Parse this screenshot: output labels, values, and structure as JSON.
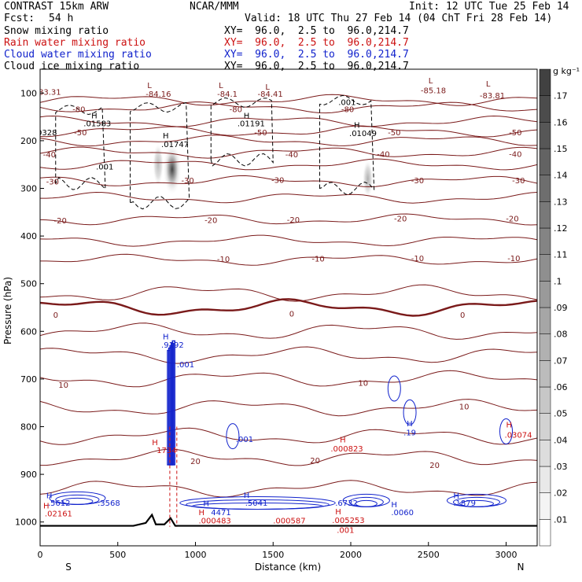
{
  "header": {
    "model": "CONTRAST 15km ARW",
    "center": "NCAR/MMM",
    "init": "Init: 12 UTC Tue 25 Feb 14",
    "fcst_label": "Fcst:",
    "fcst_value": "54 h",
    "valid": "Valid: 18 UTC Thu 27 Feb 14 (04 ChT Fri 28 Feb 14)",
    "fields": [
      {
        "name": "Snow mixing ratio",
        "xy": "XY=  96.0,  2.5 to  96.0,214.7",
        "color": "#000000"
      },
      {
        "name": "Rain water mixing ratio",
        "xy": "XY=  96.0,  2.5 to  96.0,214.7",
        "color": "#cc1111"
      },
      {
        "name": "Cloud water mixing ratio",
        "xy": "XY=  96.0,  2.5 to  96.0,214.7",
        "color": "#1122cc"
      },
      {
        "name": "Cloud ice mixing ratio",
        "xy": "XY=  96.0,  2.5 to  96.0,214.7",
        "color": "#000000"
      }
    ]
  },
  "chart_data": {
    "type": "heatmap",
    "title": "",
    "xlabel": "Distance (km)",
    "ylabel": "Pressure (hPa)",
    "xlim": [
      0,
      3200
    ],
    "ylim": [
      1050,
      50
    ],
    "x_ticks": [
      0,
      500,
      1000,
      1500,
      2000,
      2500,
      3000
    ],
    "y_ticks": [
      100,
      200,
      300,
      400,
      500,
      600,
      700,
      800,
      900,
      1000
    ],
    "x_end_labels": {
      "left": "S",
      "right": "N"
    },
    "colorbar": {
      "unit": "g kg⁻¹",
      "ticks": [
        ".01",
        ".02",
        ".03",
        ".04",
        ".05",
        ".06",
        ".07",
        ".08",
        ".09",
        ".1",
        ".11",
        ".12",
        ".13",
        ".14",
        ".15",
        ".16",
        ".17"
      ]
    },
    "isotherm_levels": [
      {
        "value": -80,
        "pressure": 130
      },
      {
        "value": -50,
        "pressure": 180
      },
      {
        "value": -40,
        "pressure": 225
      },
      {
        "value": -30,
        "pressure": 285
      },
      {
        "value": -20,
        "pressure": 365
      },
      {
        "value": -10,
        "pressure": 450
      },
      {
        "value": 0,
        "pressure": 550
      },
      {
        "value": 10,
        "pressure": 700
      },
      {
        "value": 20,
        "pressure": 865
      }
    ],
    "isotherm_extra": [
      115,
      160,
      200,
      250,
      320,
      410,
      520,
      600,
      650,
      760,
      820,
      930
    ],
    "isotherm_labels": [
      {
        "x": 80,
        "p": 285,
        "t": "-30"
      },
      {
        "x": 950,
        "p": 283,
        "t": "-30"
      },
      {
        "x": 1530,
        "p": 282,
        "t": "-30"
      },
      {
        "x": 2430,
        "p": 283,
        "t": "-30"
      },
      {
        "x": 3080,
        "p": 283,
        "t": "-30"
      },
      {
        "x": 130,
        "p": 367,
        "t": "-20"
      },
      {
        "x": 1100,
        "p": 366,
        "t": "-20"
      },
      {
        "x": 1630,
        "p": 365,
        "t": "-20"
      },
      {
        "x": 2320,
        "p": 363,
        "t": "-20"
      },
      {
        "x": 3040,
        "p": 363,
        "t": "-20"
      },
      {
        "x": 1180,
        "p": 448,
        "t": "-10"
      },
      {
        "x": 1790,
        "p": 447,
        "t": "-10"
      },
      {
        "x": 2430,
        "p": 446,
        "t": "-10"
      },
      {
        "x": 3050,
        "p": 446,
        "t": "-10"
      },
      {
        "x": 100,
        "p": 565,
        "t": "0"
      },
      {
        "x": 1620,
        "p": 562,
        "t": "0"
      },
      {
        "x": 2720,
        "p": 565,
        "t": "0"
      },
      {
        "x": 150,
        "p": 712,
        "t": "10"
      },
      {
        "x": 2080,
        "p": 708,
        "t": "10"
      },
      {
        "x": 2730,
        "p": 757,
        "t": "10"
      },
      {
        "x": 1000,
        "p": 872,
        "t": "20"
      },
      {
        "x": 1770,
        "p": 870,
        "t": "20"
      },
      {
        "x": 2540,
        "p": 880,
        "t": "20"
      },
      {
        "x": 250,
        "p": 133,
        "t": "-80"
      },
      {
        "x": 1260,
        "p": 133,
        "t": "-80"
      },
      {
        "x": 1980,
        "p": 133,
        "t": "-80"
      },
      {
        "x": 260,
        "p": 182,
        "t": "-50"
      },
      {
        "x": 1420,
        "p": 182,
        "t": "-50"
      },
      {
        "x": 2280,
        "p": 182,
        "t": "-50"
      },
      {
        "x": 3060,
        "p": 182,
        "t": "-50"
      },
      {
        "x": 60,
        "p": 228,
        "t": "-40"
      },
      {
        "x": 1620,
        "p": 228,
        "t": "-40"
      },
      {
        "x": 2210,
        "p": 227,
        "t": "-40"
      },
      {
        "x": 3060,
        "p": 227,
        "t": "-40"
      }
    ],
    "extrema": [
      {
        "x": 690,
        "p": 90,
        "t": "L",
        "color": "#7a1a1a"
      },
      {
        "x": 1150,
        "p": 90,
        "t": "L",
        "color": "#7a1a1a"
      },
      {
        "x": 1450,
        "p": 93,
        "t": "L",
        "color": "#7a1a1a"
      },
      {
        "x": 2500,
        "p": 80,
        "t": "L",
        "color": "#7a1a1a"
      },
      {
        "x": 2870,
        "p": 86,
        "t": "L",
        "color": "#7a1a1a"
      },
      {
        "x": -10,
        "p": 104,
        "t": "83.31",
        "color": "#7a1a1a"
      },
      {
        "x": 680,
        "p": 108,
        "t": "-84.16",
        "color": "#7a1a1a"
      },
      {
        "x": 1140,
        "p": 108,
        "t": "-84.1",
        "color": "#7a1a1a"
      },
      {
        "x": 1400,
        "p": 108,
        "t": "-84.41",
        "color": "#7a1a1a"
      },
      {
        "x": 2450,
        "p": 100,
        "t": "-85.18",
        "color": "#7a1a1a"
      },
      {
        "x": 2830,
        "p": 111,
        "t": "-83.81",
        "color": "#7a1a1a"
      },
      {
        "x": 330,
        "p": 153,
        "t": "H",
        "color": "#000000"
      },
      {
        "x": 280,
        "p": 170,
        "t": ".01583",
        "color": "#000000"
      },
      {
        "x": 790,
        "p": 195,
        "t": "H",
        "color": "#000000"
      },
      {
        "x": 780,
        "p": 213,
        "t": ".01747",
        "color": "#000000"
      },
      {
        "x": 1310,
        "p": 153,
        "t": "H",
        "color": "#000000"
      },
      {
        "x": 1270,
        "p": 170,
        "t": ".01191",
        "color": "#000000"
      },
      {
        "x": 2020,
        "p": 173,
        "t": "H",
        "color": "#000000"
      },
      {
        "x": 1990,
        "p": 190,
        "t": ".01049",
        "color": "#000000"
      },
      {
        "x": 1920,
        "p": 125,
        "t": ".001",
        "color": "#000000"
      },
      {
        "x": 360,
        "p": 260,
        "t": ".001",
        "color": "#000000"
      },
      {
        "x": -20,
        "p": 189,
        "t": "0328",
        "color": "#000000"
      },
      {
        "x": 790,
        "p": 617,
        "t": "H",
        "color": "#1122cc"
      },
      {
        "x": 780,
        "p": 634,
        "t": ".9192",
        "color": "#1122cc"
      },
      {
        "x": 880,
        "p": 675,
        "t": ".001",
        "color": "#1122cc"
      },
      {
        "x": 1260,
        "p": 832,
        "t": ".001",
        "color": "#1122cc"
      },
      {
        "x": 2360,
        "p": 799,
        "t": "H",
        "color": "#1122cc"
      },
      {
        "x": 2340,
        "p": 818,
        "t": ".19",
        "color": "#1122cc"
      },
      {
        "x": 40,
        "p": 950,
        "t": "H",
        "color": "#1122cc"
      },
      {
        "x": 50,
        "p": 966,
        "t": ".5612",
        "color": "#1122cc"
      },
      {
        "x": 370,
        "p": 966,
        "t": ".3568",
        "color": "#1122cc"
      },
      {
        "x": 1050,
        "p": 967,
        "t": "H",
        "color": "#1122cc"
      },
      {
        "x": 1100,
        "p": 986,
        "t": "4471",
        "color": "#1122cc"
      },
      {
        "x": 1310,
        "p": 949,
        "t": "H",
        "color": "#1122cc"
      },
      {
        "x": 1320,
        "p": 966,
        "t": ".5041",
        "color": "#1122cc"
      },
      {
        "x": 1900,
        "p": 966,
        "t": ".6732",
        "color": "#1122cc"
      },
      {
        "x": 2260,
        "p": 969,
        "t": "H",
        "color": "#1122cc"
      },
      {
        "x": 2260,
        "p": 986,
        "t": ".0060",
        "color": "#1122cc"
      },
      {
        "x": 2660,
        "p": 950,
        "t": "H",
        "color": "#1122cc"
      },
      {
        "x": 2660,
        "p": 966,
        "t": ".1879",
        "color": "#1122cc"
      },
      {
        "x": 3000,
        "p": 802,
        "t": "H",
        "color": "#cc1111"
      },
      {
        "x": 2990,
        "p": 823,
        "t": ".03074",
        "color": "#cc1111"
      },
      {
        "x": 1930,
        "p": 833,
        "t": "H",
        "color": "#cc1111"
      },
      {
        "x": 1870,
        "p": 852,
        "t": ".000823",
        "color": "#cc1111"
      },
      {
        "x": 720,
        "p": 839,
        "t": "H",
        "color": "#cc1111"
      },
      {
        "x": 750,
        "p": 855,
        "t": "1734",
        "color": "#cc1111"
      },
      {
        "x": 20,
        "p": 972,
        "t": "H",
        "color": "#cc1111"
      },
      {
        "x": 30,
        "p": 988,
        "t": ".02161",
        "color": "#cc1111"
      },
      {
        "x": 1020,
        "p": 986,
        "t": "H",
        "color": "#cc1111"
      },
      {
        "x": 1020,
        "p": 1003,
        "t": ".000483",
        "color": "#cc1111"
      },
      {
        "x": 1900,
        "p": 984,
        "t": "H",
        "color": "#cc1111"
      },
      {
        "x": 1880,
        "p": 1002,
        "t": ".005253",
        "color": "#cc1111"
      },
      {
        "x": 1500,
        "p": 1003,
        "t": ".000587",
        "color": "#cc1111"
      },
      {
        "x": 1910,
        "p": 1023,
        "t": ".001",
        "color": "#cc1111"
      }
    ],
    "snow_maxima": [
      {
        "x": 850,
        "p": 260,
        "sx": 60,
        "sp": 55,
        "value": 0.17
      },
      {
        "x": 760,
        "p": 250,
        "sx": 35,
        "sp": 45,
        "value": 0.06
      },
      {
        "x": 2110,
        "p": 280,
        "sx": 35,
        "sp": 40,
        "value": 0.07
      }
    ],
    "terrain": [
      [
        0,
        1008
      ],
      [
        600,
        1008
      ],
      [
        680,
        1002
      ],
      [
        720,
        985
      ],
      [
        745,
        1005
      ],
      [
        800,
        1005
      ],
      [
        840,
        992
      ],
      [
        870,
        1008
      ],
      [
        1200,
        1008
      ],
      [
        2000,
        1008
      ],
      [
        3200,
        1008
      ]
    ]
  }
}
